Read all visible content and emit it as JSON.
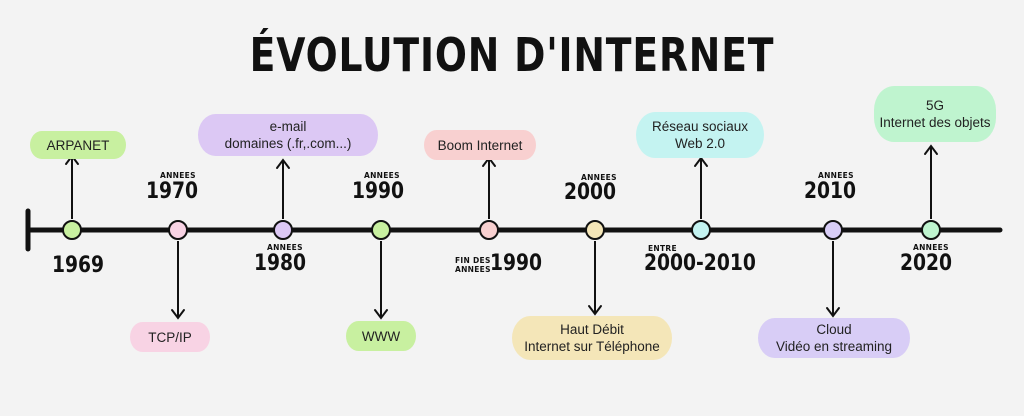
{
  "title": "ÉVOLUTION D'INTERNET",
  "colors": {
    "axis": "#111111",
    "green": "#c8f0a0",
    "pink": "#f8d3e4",
    "violet": "#dcc8f4",
    "salmon": "#f8d0d0",
    "cream": "#f4e6b8",
    "cyan": "#c4f3f1",
    "lavender": "#d8cdf6",
    "mint": "#bff4cf"
  },
  "events": [
    {
      "label_small": "",
      "year": "1969",
      "text": [
        "ARPANET"
      ],
      "dot_color": "#c8f0a0",
      "bubble_color": "#c8f0a0"
    },
    {
      "label_small": "ANNEES",
      "year": "1970",
      "text": [
        "TCP/IP"
      ],
      "dot_color": "#f8d3e4",
      "bubble_color": "#f8d3e4"
    },
    {
      "label_small": "ANNEES",
      "year": "1980",
      "text": [
        "e-mail",
        "domaines (.fr,.com...)"
      ],
      "dot_color": "#dcc8f4",
      "bubble_color": "#dcc8f4"
    },
    {
      "label_small": "ANNEES",
      "year": "1990",
      "text": [
        "WWW"
      ],
      "dot_color": "#c8f0a0",
      "bubble_color": "#c8f0a0"
    },
    {
      "label_small": "FIN DES ANNEES",
      "label_small_1": "FIN DES",
      "label_small_2": "ANNEES",
      "year": "1990",
      "text": [
        "Boom Internet"
      ],
      "dot_color": "#f8d0d0",
      "bubble_color": "#f8d0d0"
    },
    {
      "label_small": "ANNEES",
      "year": "2000",
      "text": [
        "Haut Débit",
        "Internet sur Téléphone"
      ],
      "dot_color": "#f4e6b8",
      "bubble_color": "#f4e6b8"
    },
    {
      "label_small": "ENTRE",
      "year": "2000-2010",
      "text": [
        "Réseau sociaux",
        "Web 2.0"
      ],
      "dot_color": "#c4f3f1",
      "bubble_color": "#c4f3f1"
    },
    {
      "label_small": "ANNEES",
      "year": "2010",
      "text": [
        "Cloud",
        "Vidéo en streaming"
      ],
      "dot_color": "#d8cdf6",
      "bubble_color": "#d8cdf6"
    },
    {
      "label_small": "ANNEES",
      "year": "2020",
      "text": [
        "5G",
        "Internet des objets"
      ],
      "dot_color": "#bff4cf",
      "bubble_color": "#bff4cf"
    }
  ]
}
